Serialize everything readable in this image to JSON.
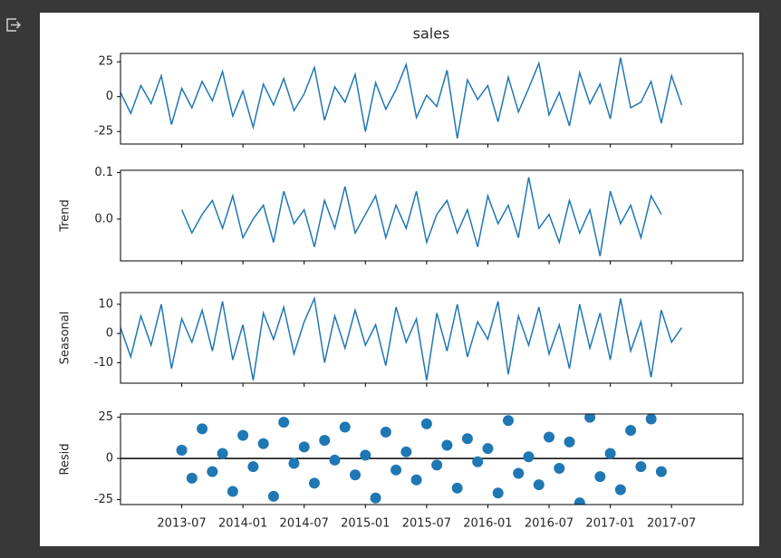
{
  "chart_data": {
    "title": "sales",
    "x": [
      "2013-01",
      "2013-02",
      "2013-03",
      "2013-04",
      "2013-05",
      "2013-06",
      "2013-07",
      "2013-08",
      "2013-09",
      "2013-10",
      "2013-11",
      "2013-12",
      "2014-01",
      "2014-02",
      "2014-03",
      "2014-04",
      "2014-05",
      "2014-06",
      "2014-07",
      "2014-08",
      "2014-09",
      "2014-10",
      "2014-11",
      "2014-12",
      "2015-01",
      "2015-02",
      "2015-03",
      "2015-04",
      "2015-05",
      "2015-06",
      "2015-07",
      "2015-08",
      "2015-09",
      "2015-10",
      "2015-11",
      "2015-12",
      "2016-01",
      "2016-02",
      "2016-03",
      "2016-04",
      "2016-05",
      "2016-06",
      "2016-07",
      "2016-08",
      "2016-09",
      "2016-10",
      "2016-11",
      "2016-12",
      "2017-01",
      "2017-02",
      "2017-03",
      "2017-04",
      "2017-05",
      "2017-06",
      "2017-07",
      "2017-08"
    ],
    "xlim": [
      "2013-01",
      "2018-02"
    ],
    "xticks": [
      "2013-07",
      "2014-01",
      "2014-07",
      "2015-01",
      "2015-07",
      "2016-01",
      "2016-07",
      "2017-01",
      "2017-07"
    ],
    "panels": [
      {
        "type": "line",
        "color": "#1f77b4",
        "ylim": [
          -34,
          31
        ],
        "yticks": [
          -25,
          0,
          25
        ],
        "values": [
          3,
          -12,
          8,
          -5,
          15,
          -20,
          6,
          -8,
          11,
          -3,
          18,
          -14,
          4,
          -22,
          9,
          -6,
          13,
          -10,
          2,
          21,
          -17,
          7,
          -4,
          16,
          -25,
          10,
          -9,
          5,
          23,
          -15,
          1,
          -7,
          19,
          -30,
          12,
          -2,
          8,
          -18,
          14,
          -11,
          6,
          24,
          -13,
          3,
          -21,
          17,
          -5,
          9,
          -16,
          28,
          -8,
          -4,
          11,
          -19,
          15,
          -6
        ]
      },
      {
        "type": "line",
        "ylabel": "Trend",
        "color": "#1f77b4",
        "ylim": [
          -0.09,
          0.105
        ],
        "yticks": [
          {
            "value": 0,
            "label": "0.0"
          },
          {
            "value": 0.1,
            "label": "0.1"
          }
        ],
        "values": [
          null,
          null,
          null,
          null,
          null,
          null,
          0.02,
          -0.03,
          0.01,
          0.04,
          -0.02,
          0.05,
          -0.04,
          0.0,
          0.03,
          -0.05,
          0.06,
          -0.01,
          0.02,
          -0.06,
          0.04,
          -0.02,
          0.07,
          -0.03,
          0.01,
          0.05,
          -0.04,
          0.03,
          -0.02,
          0.06,
          -0.05,
          0.01,
          0.04,
          -0.03,
          0.02,
          -0.06,
          0.05,
          -0.01,
          0.03,
          -0.04,
          0.09,
          -0.02,
          0.01,
          -0.05,
          0.04,
          -0.03,
          0.02,
          -0.08,
          0.06,
          -0.01,
          0.03,
          -0.04,
          0.05,
          0.01,
          null,
          null
        ]
      },
      {
        "type": "line",
        "ylabel": "Seasonal",
        "color": "#1f77b4",
        "ylim": [
          -17,
          14
        ],
        "yticks": [
          -10,
          0,
          10
        ],
        "values": [
          2,
          -8,
          6,
          -4,
          10,
          -12,
          5,
          -3,
          8,
          -6,
          11,
          -9,
          3,
          -16,
          7,
          -2,
          9,
          -7,
          4,
          12,
          -10,
          6,
          -5,
          8,
          -4,
          3,
          -11,
          9,
          -3,
          5,
          -16,
          7,
          -6,
          10,
          -8,
          4,
          -2,
          11,
          -14,
          6,
          -4,
          9,
          -7,
          3,
          -12,
          10,
          -5,
          7,
          -9,
          12,
          -6,
          4,
          -15,
          8,
          -3,
          2
        ]
      },
      {
        "type": "scatter",
        "ylabel": "Resid",
        "color": "#1f77b4",
        "hline": 0,
        "ylim": [
          -28,
          27
        ],
        "yticks": [
          -25,
          0,
          25
        ],
        "values": [
          null,
          null,
          null,
          null,
          null,
          null,
          5,
          -12,
          18,
          -8,
          3,
          -20,
          14,
          -5,
          9,
          -23,
          22,
          -3,
          7,
          -15,
          11,
          -1,
          19,
          -10,
          2,
          -24,
          16,
          -7,
          4,
          -13,
          21,
          -4,
          8,
          -18,
          12,
          -2,
          6,
          -21,
          23,
          -9,
          1,
          -16,
          13,
          -6,
          10,
          -27,
          25,
          -11,
          3,
          -19,
          17,
          -5,
          24,
          -8,
          null,
          null
        ]
      }
    ]
  }
}
